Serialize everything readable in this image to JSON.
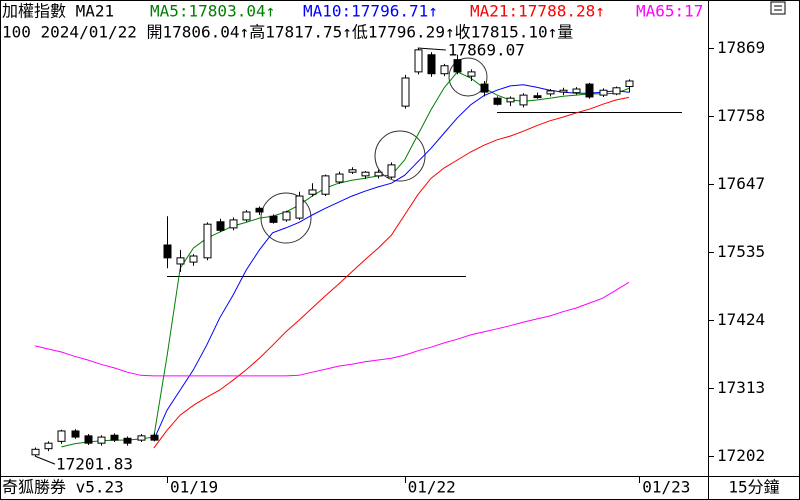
{
  "chart_data": {
    "type": "candlestick",
    "title": "加權指數 MA21",
    "info": "100 2024/01/22 開17806.04↑高17817.75↑低17796.29↑收17815.10↑量",
    "footer_left": "奇狐勝券 v5.23",
    "footer_right": "15分鐘",
    "categories": [
      null,
      null,
      null,
      null,
      null,
      null,
      null,
      null,
      null,
      null,
      "01/19",
      null,
      null,
      null,
      null,
      null,
      null,
      null,
      null,
      null,
      null,
      null,
      null,
      null,
      null,
      null,
      null,
      null,
      "01/22",
      null,
      null,
      null,
      null,
      null,
      null,
      null,
      null,
      null,
      null,
      null,
      null,
      null,
      null,
      null,
      null,
      null
    ],
    "next_category": "01/23",
    "ohlc": {
      "open": [
        17204,
        17214,
        17226,
        17243,
        17235,
        17223,
        17236,
        17231,
        17228,
        17236,
        17547,
        17516,
        17519,
        17526,
        17585,
        17575,
        17588,
        17607,
        17594,
        17588,
        17591,
        17630,
        17630,
        17650,
        17666,
        17660,
        17660,
        17658,
        17774,
        17830,
        17858,
        17827,
        17850,
        17823,
        17810,
        17787,
        17781,
        17776,
        17791,
        17794,
        17797,
        17796,
        17810,
        17792,
        17794,
        17806.04
      ],
      "high": [
        17216,
        17226,
        17245,
        17246,
        17238,
        17236,
        17239,
        17234,
        17238,
        17240,
        17594,
        17539,
        17532,
        17584,
        17590,
        17592,
        17604,
        17610,
        17597,
        17603,
        17634,
        17648,
        17662,
        17667,
        17674,
        17668,
        17670,
        17682,
        17825,
        17869.07,
        17862,
        17843,
        17858,
        17834,
        17815,
        17790,
        17790,
        17795,
        17796,
        17802,
        17804,
        17805,
        17812,
        17803,
        17806,
        17817.75
      ],
      "low": [
        17201.83,
        17210,
        17222,
        17230,
        17220,
        17219,
        17225,
        17219,
        17225,
        17226,
        17509,
        17503,
        17513,
        17522,
        17568,
        17571,
        17585,
        17596,
        17582,
        17585,
        17588,
        17626,
        17627,
        17647,
        17663,
        17655,
        17656,
        17655,
        17770,
        17826,
        17822,
        17823,
        17826,
        17815,
        17790,
        17775,
        17774,
        17772,
        17786,
        17790,
        17792,
        17793,
        17786,
        17789,
        17792,
        17796.29
      ],
      "close": [
        17213,
        17223,
        17243,
        17233,
        17223,
        17233,
        17228,
        17223,
        17235,
        17228,
        17526,
        17526,
        17529,
        17581,
        17571,
        17588,
        17601,
        17601,
        17584,
        17601,
        17627,
        17637,
        17660,
        17663,
        17670,
        17666,
        17666,
        17678,
        17820,
        17866,
        17827,
        17840,
        17830,
        17830,
        17797,
        17777,
        17787,
        17792,
        17788,
        17799,
        17800,
        17802,
        17789,
        17800,
        17804,
        17815.1
      ]
    },
    "series": [
      {
        "label": "MA5:17803.04↑",
        "color": "#008000",
        "values": [
          null,
          null,
          17217,
          17222,
          17225,
          17227,
          17228,
          17228,
          17230,
          17233,
          17365,
          17509,
          17542,
          17558,
          17568,
          17578,
          17584,
          17591,
          17594,
          17601,
          17612,
          17627,
          17640,
          17648,
          17653,
          17656,
          17660,
          17661,
          17686,
          17727,
          17768,
          17804,
          17830,
          17820,
          17804,
          17792,
          17784,
          17782,
          17784,
          17787,
          17790,
          17792,
          17794,
          17794,
          17795,
          17803.04
        ]
      },
      {
        "label": "MA10:17796.71↑",
        "color": "#0000ff",
        "values": [
          null,
          null,
          null,
          null,
          null,
          null,
          null,
          null,
          null,
          17228,
          17277,
          17310,
          17343,
          17383,
          17428,
          17465,
          17506,
          17539,
          17567,
          17575,
          17584,
          17596,
          17607,
          17617,
          17627,
          17635,
          17642,
          17648,
          17661,
          17683,
          17705,
          17730,
          17755,
          17776,
          17791,
          17800,
          17807,
          17809,
          17805,
          17800,
          17797,
          17795,
          17795,
          17797,
          17799,
          17796.71
        ]
      },
      {
        "label": "MA21:17788.28↑",
        "color": "#ff0000",
        "values": [
          null,
          null,
          null,
          null,
          null,
          null,
          null,
          null,
          null,
          17215,
          17244,
          17269,
          17285,
          17298,
          17310,
          17326,
          17343,
          17362,
          17383,
          17405,
          17424,
          17444,
          17464,
          17483,
          17503,
          17523,
          17542,
          17563,
          17596,
          17629,
          17656,
          17673,
          17686,
          17699,
          17710,
          17719,
          17725,
          17733,
          17742,
          17750,
          17756,
          17763,
          17769,
          17777,
          17784,
          17788.28
        ]
      },
      {
        "label": "MA65:17",
        "color": "#ff00ff",
        "values": [
          17382,
          17377,
          17372,
          17365,
          17359,
          17352,
          17346,
          17339,
          17334,
          17333,
          17333,
          17333,
          17333,
          17333,
          17333,
          17333,
          17333,
          17333,
          17333,
          17333,
          17334,
          17339,
          17344,
          17349,
          17352,
          17356,
          17359,
          17362,
          17367,
          17374,
          17380,
          17387,
          17393,
          17400,
          17405,
          17410,
          17415,
          17421,
          17426,
          17431,
          17438,
          17444,
          17452,
          17460,
          17473,
          17486
        ]
      }
    ],
    "ref_lines": [
      17496,
      17764
    ],
    "ylim": [
      17171,
      17947.5
    ],
    "yticks": [
      17869,
      17758,
      17647,
      17535,
      17424,
      17313,
      17202
    ]
  }
}
